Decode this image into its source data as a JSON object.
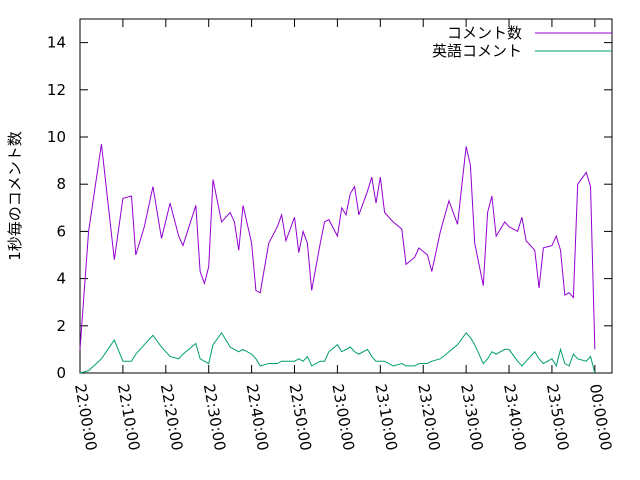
{
  "chart_data": {
    "type": "line",
    "ylabel": "1秒毎のコメント数",
    "x": [
      "22:00:00",
      "22:02:00",
      "22:05:00",
      "22:08:00",
      "22:10:00",
      "22:12:00",
      "22:13:00",
      "22:15:00",
      "22:17:00",
      "22:19:00",
      "22:21:00",
      "22:23:00",
      "22:24:00",
      "22:27:00",
      "22:28:00",
      "22:29:00",
      "22:30:00",
      "22:31:00",
      "22:33:00",
      "22:35:00",
      "22:36:00",
      "22:37:00",
      "22:38:00",
      "22:40:00",
      "22:41:00",
      "22:42:00",
      "22:44:00",
      "22:46:00",
      "22:47:00",
      "22:48:00",
      "22:50:00",
      "22:51:00",
      "22:52:00",
      "22:53:00",
      "22:54:00",
      "22:56:00",
      "22:57:00",
      "22:58:00",
      "23:00:00",
      "23:01:00",
      "23:02:00",
      "23:03:00",
      "23:04:00",
      "23:05:00",
      "23:07:00",
      "23:08:00",
      "23:09:00",
      "23:10:00",
      "23:11:00",
      "23:13:00",
      "23:15:00",
      "23:16:00",
      "23:18:00",
      "23:19:00",
      "23:21:00",
      "23:22:00",
      "23:24:00",
      "23:26:00",
      "23:28:00",
      "23:30:00",
      "23:31:00",
      "23:32:00",
      "23:34:00",
      "23:35:00",
      "23:36:00",
      "23:37:00",
      "23:39:00",
      "23:40:00",
      "23:42:00",
      "23:43:00",
      "23:44:00",
      "23:46:00",
      "23:47:00",
      "23:48:00",
      "23:50:00",
      "23:51:00",
      "23:52:00",
      "23:53:00",
      "23:54:00",
      "23:55:00",
      "23:56:00",
      "23:58:00",
      "23:59:00",
      "00:00:00"
    ],
    "series": [
      {
        "name": "コメント数",
        "color": "#9400d3",
        "values": [
          1.0,
          6.0,
          9.7,
          4.8,
          7.4,
          7.5,
          5.0,
          6.2,
          7.9,
          5.7,
          7.2,
          5.8,
          5.4,
          7.1,
          4.3,
          3.8,
          4.5,
          8.2,
          6.4,
          6.8,
          6.4,
          5.2,
          7.1,
          5.5,
          3.5,
          3.4,
          5.5,
          6.2,
          6.7,
          5.6,
          6.6,
          5.1,
          6.0,
          5.5,
          3.5,
          5.5,
          6.4,
          6.5,
          5.8,
          7.0,
          6.7,
          7.6,
          7.9,
          6.7,
          7.7,
          8.3,
          7.2,
          8.3,
          6.8,
          6.4,
          6.1,
          4.6,
          4.9,
          5.3,
          5.0,
          4.3,
          6.0,
          7.3,
          6.3,
          9.6,
          8.8,
          5.5,
          3.7,
          6.8,
          7.5,
          5.8,
          6.4,
          6.2,
          6.0,
          6.6,
          5.6,
          5.2,
          3.6,
          5.3,
          5.4,
          5.8,
          5.2,
          3.3,
          3.4,
          3.2,
          8.0,
          8.5,
          7.9,
          1.0
        ]
      },
      {
        "name": "英語コメント",
        "color": "#009e73",
        "values": [
          0.0,
          0.1,
          0.6,
          1.4,
          0.5,
          0.5,
          0.8,
          1.2,
          1.6,
          1.1,
          0.7,
          0.6,
          0.8,
          1.25,
          0.6,
          0.5,
          0.4,
          1.2,
          1.7,
          1.1,
          1.0,
          0.9,
          1.0,
          0.8,
          0.6,
          0.3,
          0.4,
          0.4,
          0.5,
          0.5,
          0.5,
          0.6,
          0.5,
          0.7,
          0.3,
          0.5,
          0.5,
          0.9,
          1.2,
          0.9,
          1.0,
          1.1,
          0.9,
          0.8,
          1.0,
          0.7,
          0.5,
          0.5,
          0.5,
          0.3,
          0.4,
          0.3,
          0.3,
          0.4,
          0.4,
          0.5,
          0.6,
          0.9,
          1.2,
          1.7,
          1.5,
          1.2,
          0.4,
          0.6,
          0.9,
          0.8,
          1.0,
          1.0,
          0.5,
          0.3,
          0.5,
          0.9,
          0.6,
          0.4,
          0.6,
          0.3,
          1.0,
          0.4,
          0.3,
          0.8,
          0.6,
          0.5,
          0.7,
          0.0
        ]
      }
    ],
    "xlim": [
      "22:00:00",
      "00:04:00"
    ],
    "xticks": [
      "22:00:00",
      "22:10:00",
      "22:20:00",
      "22:30:00",
      "22:40:00",
      "22:50:00",
      "23:00:00",
      "23:10:00",
      "23:20:00",
      "23:30:00",
      "23:40:00",
      "23:50:00",
      "00:00:00"
    ],
    "ylim": [
      0,
      15
    ],
    "yticks": [
      0,
      2,
      4,
      6,
      8,
      10,
      12,
      14
    ],
    "legend": "top-right"
  }
}
